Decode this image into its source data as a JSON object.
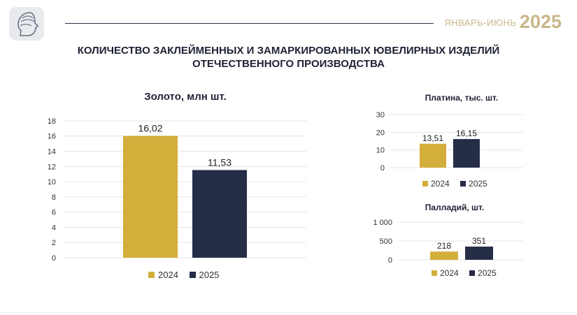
{
  "header": {
    "period_prefix": "ЯНВАРЬ-ИЮНЬ",
    "period_year": "2025",
    "title_line1": "КОЛИЧЕСТВО ЗАКЛЕЙМЕННЫХ И ЗАМАРКИРОВАННЫХ ЮВЕЛИРНЫХ ИЗДЕЛИЙ",
    "title_line2": "ОТЕЧЕСТВЕННОГО ПРОИЗВОДСТВА"
  },
  "logo": {
    "icon": "profile-head-icon"
  },
  "colors": {
    "series_2024": "#d4ae3a",
    "series_2025": "#262d47",
    "accent": "#c9b68a"
  },
  "chart_data": [
    {
      "type": "bar",
      "title": "Золото, млн шт.",
      "categories": [
        "2024",
        "2025"
      ],
      "values": [
        16.02,
        11.53
      ],
      "value_labels": [
        "16,02",
        "11,53"
      ],
      "ticks": [
        "0",
        "2",
        "4",
        "6",
        "8",
        "10",
        "12",
        "14",
        "16",
        "18"
      ],
      "ylim": [
        0,
        18
      ],
      "grid": true,
      "legend": [
        "2024",
        "2025"
      ],
      "legend_position": "bottom"
    },
    {
      "type": "bar",
      "title": "Платина, тыс. шт.",
      "categories": [
        "2024",
        "2025"
      ],
      "values": [
        13.51,
        16.15
      ],
      "value_labels": [
        "13,51",
        "16,15"
      ],
      "ticks": [
        "0",
        "10",
        "20",
        "30"
      ],
      "ylim": [
        0,
        30
      ],
      "grid": true,
      "legend": [
        "2024",
        "2025"
      ],
      "legend_position": "bottom"
    },
    {
      "type": "bar",
      "title": "Палладий, шт.",
      "categories": [
        "2024",
        "2025"
      ],
      "values": [
        218,
        351
      ],
      "value_labels": [
        "218",
        "351"
      ],
      "ticks": [
        "0",
        "500",
        "1 000"
      ],
      "ylim": [
        0,
        1000
      ],
      "grid": true,
      "legend": [
        "2024",
        "2025"
      ],
      "legend_position": "bottom"
    }
  ]
}
